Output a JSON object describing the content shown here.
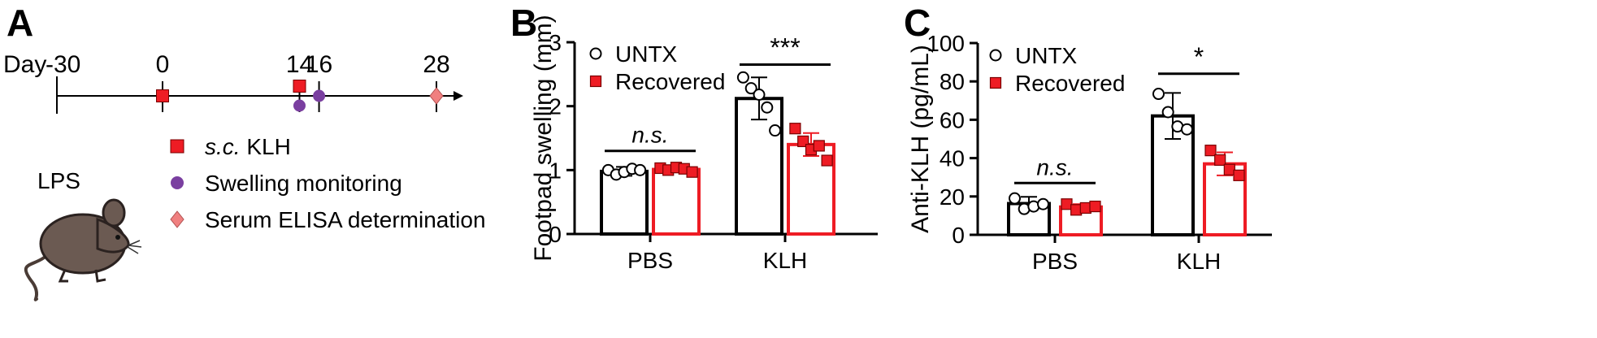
{
  "panels": {
    "a": {
      "letter": "A",
      "day_label": "Day",
      "timepoints": [
        {
          "day": -30,
          "label": "-30",
          "events": []
        },
        {
          "day": 0,
          "label": "0",
          "events": [
            "klh"
          ]
        },
        {
          "day": 14,
          "label": "14",
          "events": [
            "klh",
            "swelling"
          ]
        },
        {
          "day": 16,
          "label": "16",
          "events": [
            "swelling"
          ]
        },
        {
          "day": 28,
          "label": "28",
          "events": [
            "elisa"
          ]
        }
      ],
      "lps_label": "LPS",
      "legend": [
        {
          "key": "klh",
          "prefix": "s.c.",
          "text": " KLH",
          "color": "#ee1c24",
          "shape": "square"
        },
        {
          "key": "swelling",
          "prefix": "",
          "text": "Swelling monitoring",
          "color": "#7a3fa0",
          "shape": "circle"
        },
        {
          "key": "elisa",
          "prefix": "",
          "text": "Serum ELISA determination",
          "color": "#f08080",
          "shape": "diamond"
        }
      ]
    },
    "b": {
      "letter": "B"
    },
    "c": {
      "letter": "C"
    }
  },
  "chart_data": [
    {
      "type": "bar",
      "panel": "B",
      "ylabel": "Footpad swelling (mm)",
      "ylim": [
        0,
        3
      ],
      "yticks": [
        0,
        1,
        2,
        3
      ],
      "categories": [
        "PBS",
        "KLH"
      ],
      "series": [
        {
          "name": "UNTX",
          "color": "#000000",
          "marker": "open-circle",
          "values": [
            0.98,
            2.12
          ],
          "errors": [
            0.07,
            0.33
          ],
          "points": [
            [
              1.0,
              0.93,
              0.97,
              1.02,
              1.0
            ],
            [
              2.45,
              2.28,
              2.18,
              1.98,
              1.62
            ]
          ]
        },
        {
          "name": "Recovered",
          "color": "#ee1c24",
          "marker": "filled-square",
          "values": [
            1.01,
            1.4
          ],
          "errors": [
            0.04,
            0.18
          ],
          "points": [
            [
              1.03,
              1.0,
              1.04,
              1.02,
              0.97
            ],
            [
              1.65,
              1.45,
              1.32,
              1.38,
              1.15
            ]
          ]
        }
      ],
      "significance": [
        {
          "category": "PBS",
          "label": "n.s.",
          "italic": true,
          "y": 1.3
        },
        {
          "category": "KLH",
          "label": "***",
          "italic": false,
          "y": 2.65
        }
      ],
      "legend_position": "top-left"
    },
    {
      "type": "bar",
      "panel": "C",
      "ylabel": "Anti-KLH (pg/mL)",
      "ylim": [
        0,
        100
      ],
      "yticks": [
        0,
        20,
        40,
        60,
        80,
        100
      ],
      "categories": [
        "PBS",
        "KLH"
      ],
      "series": [
        {
          "name": "UNTX",
          "color": "#000000",
          "marker": "open-circle",
          "values": [
            16.3,
            62.0
          ],
          "errors": [
            3.5,
            12.0
          ],
          "points": [
            [
              19.0,
              13.5,
              14.8,
              16.0
            ],
            [
              73.5,
              64.0,
              56.5,
              55.0
            ]
          ]
        },
        {
          "name": "Recovered",
          "color": "#ee1c24",
          "marker": "filled-square",
          "values": [
            14.5,
            37.0
          ],
          "errors": [
            1.5,
            6.0
          ],
          "points": [
            [
              16.0,
              13.0,
              14.0,
              14.8
            ],
            [
              44.0,
              39.0,
              34.0,
              31.0
            ]
          ]
        }
      ],
      "significance": [
        {
          "category": "PBS",
          "label": "n.s.",
          "italic": true,
          "y": 27
        },
        {
          "category": "KLH",
          "label": "*",
          "italic": false,
          "y": 84
        }
      ],
      "legend_position": "top-left"
    }
  ]
}
